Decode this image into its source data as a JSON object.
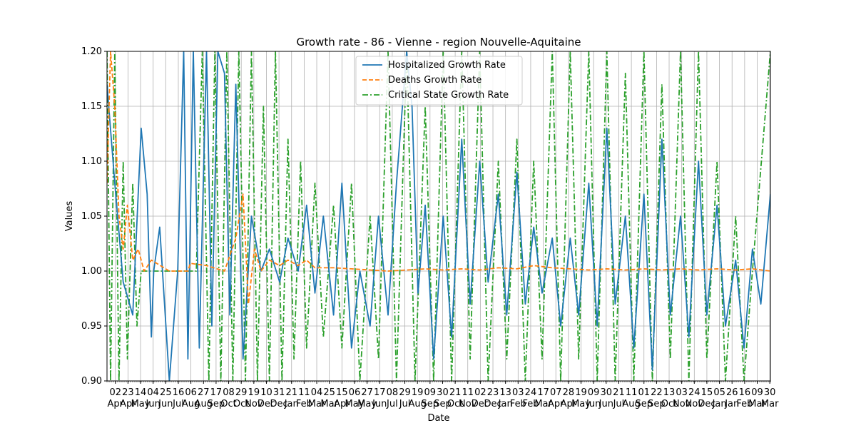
{
  "chart_data": {
    "type": "line",
    "title": "Growth rate - 86 - Vienne - region Nouvelle-Aquitaine",
    "xlabel": "Date",
    "ylabel": "Values",
    "ylim": [
      0.9,
      1.2
    ],
    "yticks": [
      "0.90",
      "0.95",
      "1.00",
      "1.05",
      "1.10",
      "1.15",
      "1.20"
    ],
    "grid": true,
    "legend_position": "top-center",
    "x_start": "2020-03-19",
    "x_end": "2023-03-31",
    "xticks": [
      {
        "day": "02",
        "month": "Apr"
      },
      {
        "day": "23",
        "month": "Apr"
      },
      {
        "day": "14",
        "month": "May"
      },
      {
        "day": "04",
        "month": "Jun"
      },
      {
        "day": "25",
        "month": "Jun"
      },
      {
        "day": "16",
        "month": "Jul"
      },
      {
        "day": "06",
        "month": "Aug"
      },
      {
        "day": "27",
        "month": "Aug"
      },
      {
        "day": "17",
        "month": "Sep"
      },
      {
        "day": "08",
        "month": "Oct"
      },
      {
        "day": "29",
        "month": "Oct"
      },
      {
        "day": "19",
        "month": "Nov"
      },
      {
        "day": "10",
        "month": "Dec"
      },
      {
        "day": "31",
        "month": "Dec"
      },
      {
        "day": "21",
        "month": "Jan"
      },
      {
        "day": "11",
        "month": "Feb"
      },
      {
        "day": "04",
        "month": "Mar"
      },
      {
        "day": "25",
        "month": "Mar"
      },
      {
        "day": "15",
        "month": "Apr"
      },
      {
        "day": "06",
        "month": "May"
      },
      {
        "day": "27",
        "month": "May"
      },
      {
        "day": "17",
        "month": "Jun"
      },
      {
        "day": "08",
        "month": "Jul"
      },
      {
        "day": "29",
        "month": "Jul"
      },
      {
        "day": "19",
        "month": "Aug"
      },
      {
        "day": "09",
        "month": "Sep"
      },
      {
        "day": "30",
        "month": "Sep"
      },
      {
        "day": "21",
        "month": "Oct"
      },
      {
        "day": "11",
        "month": "Nov"
      },
      {
        "day": "02",
        "month": "Dec"
      },
      {
        "day": "23",
        "month": "Dec"
      },
      {
        "day": "13",
        "month": "Jan"
      },
      {
        "day": "03",
        "month": "Feb"
      },
      {
        "day": "24",
        "month": "Feb"
      },
      {
        "day": "17",
        "month": "Mar"
      },
      {
        "day": "07",
        "month": "Apr"
      },
      {
        "day": "28",
        "month": "Apr"
      },
      {
        "day": "19",
        "month": "May"
      },
      {
        "day": "09",
        "month": "Jun"
      },
      {
        "day": "30",
        "month": "Jun"
      },
      {
        "day": "21",
        "month": "Jul"
      },
      {
        "day": "11",
        "month": "Aug"
      },
      {
        "day": "01",
        "month": "Sep"
      },
      {
        "day": "22",
        "month": "Sep"
      },
      {
        "day": "13",
        "month": "Oct"
      },
      {
        "day": "03",
        "month": "Nov"
      },
      {
        "day": "24",
        "month": "Nov"
      },
      {
        "day": "15",
        "month": "Dec"
      },
      {
        "day": "05",
        "month": "Jan"
      },
      {
        "day": "26",
        "month": "Jan"
      },
      {
        "day": "16",
        "month": "Feb"
      },
      {
        "day": "09",
        "month": "Mar"
      },
      {
        "day": "30",
        "month": "Mar"
      }
    ],
    "series": [
      {
        "name": "Hospitalized Growth Rate",
        "color": "#1f77b4",
        "dash": "solid",
        "x": [
          "2020-03-19",
          "2020-04-01",
          "2020-04-15",
          "2020-05-01",
          "2020-05-15",
          "2020-05-25",
          "2020-06-01",
          "2020-06-05",
          "2020-06-15",
          "2020-07-01",
          "2020-07-15",
          "2020-07-25",
          "2020-08-01",
          "2020-08-10",
          "2020-08-20",
          "2020-09-01",
          "2020-09-10",
          "2020-09-20",
          "2020-10-01",
          "2020-10-10",
          "2020-10-20",
          "2020-11-01",
          "2020-11-15",
          "2020-12-01",
          "2020-12-15",
          "2021-01-01",
          "2021-01-15",
          "2021-02-01",
          "2021-02-15",
          "2021-03-01",
          "2021-03-15",
          "2021-04-01",
          "2021-04-15",
          "2021-05-01",
          "2021-05-15",
          "2021-06-01",
          "2021-06-15",
          "2021-07-01",
          "2021-07-15",
          "2021-08-01",
          "2021-08-10",
          "2021-08-20",
          "2021-09-01",
          "2021-09-15",
          "2021-10-01",
          "2021-10-15",
          "2021-11-01",
          "2021-11-15",
          "2021-12-01",
          "2021-12-15",
          "2022-01-01",
          "2022-01-15",
          "2022-02-01",
          "2022-02-15",
          "2022-03-01",
          "2022-03-15",
          "2022-04-01",
          "2022-04-15",
          "2022-05-01",
          "2022-05-15",
          "2022-06-01",
          "2022-06-15",
          "2022-07-01",
          "2022-07-15",
          "2022-08-01",
          "2022-08-15",
          "2022-09-01",
          "2022-09-15",
          "2022-10-01",
          "2022-10-15",
          "2022-11-01",
          "2022-11-15",
          "2022-12-01",
          "2022-12-15",
          "2023-01-01",
          "2023-01-15",
          "2023-02-01",
          "2023-02-15",
          "2023-03-01",
          "2023-03-15",
          "2023-03-31"
        ],
        "values": [
          1.17,
          1.08,
          0.99,
          0.96,
          1.13,
          1.07,
          0.94,
          1.0,
          1.04,
          0.9,
          1.0,
          1.2,
          0.92,
          1.2,
          0.93,
          1.2,
          0.95,
          1.2,
          1.18,
          0.96,
          1.17,
          0.92,
          1.05,
          1.0,
          1.02,
          0.99,
          1.03,
          1.0,
          1.06,
          0.98,
          1.05,
          0.96,
          1.08,
          0.93,
          1.0,
          0.95,
          1.05,
          0.96,
          1.08,
          1.2,
          1.15,
          0.98,
          1.06,
          0.92,
          1.05,
          0.94,
          1.12,
          0.97,
          1.1,
          0.99,
          1.07,
          0.96,
          1.09,
          0.97,
          1.04,
          0.98,
          1.03,
          0.95,
          1.03,
          0.96,
          1.08,
          0.95,
          1.13,
          0.97,
          1.05,
          0.93,
          1.07,
          0.91,
          1.12,
          0.96,
          1.05,
          0.94,
          1.1,
          0.96,
          1.06,
          0.95,
          1.01,
          0.93,
          1.02,
          0.97,
          1.07
        ]
      },
      {
        "name": "Deaths Growth Rate",
        "color": "#ff7f0e",
        "dash": "dashed",
        "x": [
          "2020-03-19",
          "2020-03-25",
          "2020-04-01",
          "2020-04-08",
          "2020-04-15",
          "2020-04-22",
          "2020-05-01",
          "2020-05-10",
          "2020-05-20",
          "2020-06-01",
          "2020-07-01",
          "2020-08-01",
          "2020-08-05",
          "2020-09-01",
          "2020-10-01",
          "2020-10-20",
          "2020-11-01",
          "2020-11-10",
          "2020-11-20",
          "2020-12-01",
          "2020-12-15",
          "2021-01-01",
          "2021-01-15",
          "2021-02-01",
          "2021-02-15",
          "2021-03-01",
          "2021-04-01",
          "2021-05-01",
          "2021-06-01",
          "2021-07-01",
          "2021-08-01",
          "2021-09-01",
          "2021-10-01",
          "2021-11-01",
          "2021-12-01",
          "2022-01-01",
          "2022-02-01",
          "2022-03-01",
          "2022-04-01",
          "2022-05-01",
          "2022-06-01",
          "2022-07-01",
          "2022-08-01",
          "2022-09-01",
          "2022-10-01",
          "2022-11-01",
          "2022-12-01",
          "2023-01-01",
          "2023-02-01",
          "2023-03-01",
          "2023-03-31"
        ],
        "values": [
          1.08,
          1.2,
          1.15,
          1.05,
          1.02,
          1.06,
          1.01,
          1.02,
          1.0,
          1.01,
          1.0,
          1.0,
          1.007,
          1.005,
          1.0,
          1.03,
          1.07,
          0.97,
          1.02,
          1.0,
          1.01,
          1.005,
          1.01,
          1.005,
          1.01,
          1.003,
          1.003,
          1.002,
          1.001,
          1.0,
          1.001,
          1.002,
          1.001,
          1.002,
          1.001,
          1.003,
          1.002,
          1.005,
          1.003,
          1.002,
          1.001,
          1.002,
          1.001,
          1.002,
          1.001,
          1.002,
          1.001,
          1.002,
          1.001,
          1.002,
          1.0
        ]
      },
      {
        "name": "Critical State Growth Rate",
        "color": "#2ca02c",
        "dash": "dashdot",
        "x": [
          "2020-03-19",
          "2020-03-25",
          "2020-04-01",
          "2020-04-08",
          "2020-04-15",
          "2020-04-22",
          "2020-05-01",
          "2020-05-08",
          "2020-05-15",
          "2020-06-01",
          "2020-07-01",
          "2020-08-01",
          "2020-08-15",
          "2020-08-25",
          "2020-09-05",
          "2020-09-15",
          "2020-09-25",
          "2020-10-05",
          "2020-10-15",
          "2020-10-25",
          "2020-11-05",
          "2020-11-15",
          "2020-11-25",
          "2020-12-05",
          "2020-12-15",
          "2020-12-25",
          "2021-01-05",
          "2021-01-15",
          "2021-01-25",
          "2021-02-05",
          "2021-02-15",
          "2021-03-01",
          "2021-03-15",
          "2021-04-01",
          "2021-04-15",
          "2021-05-01",
          "2021-05-15",
          "2021-06-01",
          "2021-06-15",
          "2021-07-01",
          "2021-07-15",
          "2021-08-01",
          "2021-08-15",
          "2021-09-01",
          "2021-09-15",
          "2021-10-01",
          "2021-10-15",
          "2021-11-01",
          "2021-11-15",
          "2021-12-01",
          "2021-12-15",
          "2022-01-01",
          "2022-01-15",
          "2022-02-01",
          "2022-02-15",
          "2022-03-01",
          "2022-03-15",
          "2022-04-01",
          "2022-04-15",
          "2022-05-01",
          "2022-05-15",
          "2022-06-01",
          "2022-06-15",
          "2022-07-01",
          "2022-07-15",
          "2022-08-01",
          "2022-08-15",
          "2022-09-01",
          "2022-09-15",
          "2022-10-01",
          "2022-10-15",
          "2022-11-01",
          "2022-11-15",
          "2022-12-01",
          "2022-12-15",
          "2023-01-01",
          "2023-01-15",
          "2023-02-01",
          "2023-02-15",
          "2023-03-01",
          "2023-03-31"
        ],
        "values": [
          1.2,
          0.9,
          1.2,
          0.9,
          1.1,
          0.92,
          1.08,
          0.95,
          1.0,
          1.0,
          1.0,
          1.0,
          1.0,
          1.2,
          0.9,
          1.2,
          0.9,
          1.2,
          0.9,
          1.2,
          0.9,
          1.2,
          0.9,
          1.15,
          0.9,
          1.2,
          0.9,
          1.12,
          0.92,
          1.1,
          0.93,
          1.08,
          0.94,
          1.06,
          0.93,
          1.08,
          0.9,
          1.05,
          0.92,
          1.2,
          0.9,
          1.2,
          0.9,
          1.15,
          0.9,
          1.2,
          0.9,
          1.2,
          0.92,
          1.2,
          0.9,
          1.1,
          0.92,
          1.12,
          0.9,
          1.1,
          0.92,
          1.2,
          0.9,
          1.2,
          0.92,
          1.2,
          0.9,
          1.2,
          0.9,
          1.18,
          0.9,
          1.2,
          0.9,
          1.17,
          0.92,
          1.2,
          0.9,
          1.2,
          0.92,
          1.1,
          0.9,
          1.05,
          0.9,
          1.0,
          1.2
        ]
      }
    ]
  }
}
